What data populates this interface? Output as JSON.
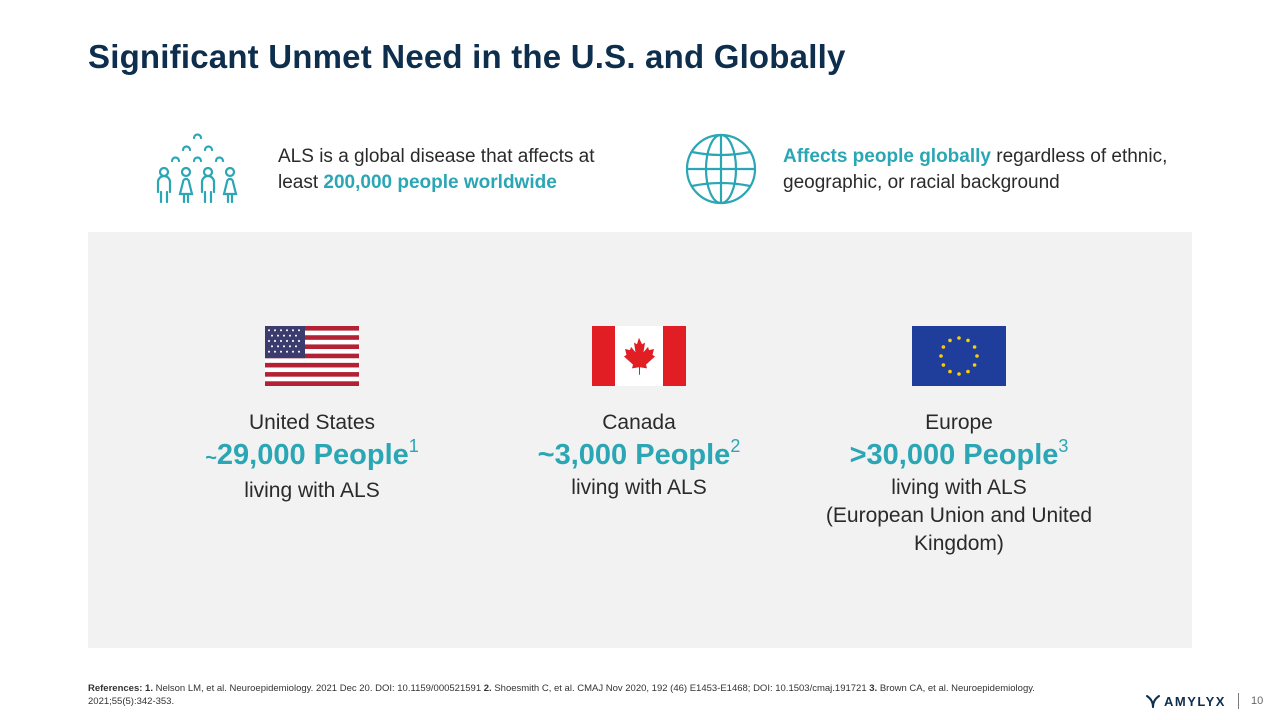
{
  "title": "Significant Unmet Need in the U.S. and Globally",
  "intro": {
    "left": {
      "icon": "people-group-icon",
      "text_before": "ALS is a global disease that affects at least ",
      "highlight": "200,000 people worldwide"
    },
    "right": {
      "icon": "globe-icon",
      "highlight": "Affects people globally",
      "text_after": " regardless of ethnic, geographic, or racial background"
    }
  },
  "colors": {
    "accent": "#2aa6b5",
    "title": "#0e2e4d",
    "panel": "#f2f2f2"
  },
  "regions": [
    {
      "name": "United States",
      "prefix": "~",
      "count": "29,000 People",
      "sup": "1",
      "desc": "living with ALS",
      "desc_extra": "",
      "flag_icon": "us-flag-icon"
    },
    {
      "name": "Canada",
      "prefix": "~",
      "count": "3,000 People",
      "sup": "2",
      "desc": "living with ALS",
      "desc_extra": "",
      "flag_icon": "canada-flag-icon"
    },
    {
      "name": "Europe",
      "prefix": ">",
      "count": "30,000 People",
      "sup": "3",
      "desc": "living with ALS",
      "desc_extra": "(European Union and United Kingdom)",
      "flag_icon": "eu-flag-icon"
    }
  ],
  "references": {
    "label": "References:",
    "items": [
      {
        "num": "1.",
        "text": " Nelson LM, et al. Neuroepidemiology. 2021 Dec 20. DOI: 10.1159/000521591 "
      },
      {
        "num": "2.",
        "text": " Shoesmith C, et al. CMAJ Nov 2020, 192 (46) E1453-E1468; DOI: 10.1503/cmaj.191721 "
      },
      {
        "num": "3.",
        "text": " Brown CA, et al. Neuroepidemiology. 2021;55(5):342-353."
      }
    ]
  },
  "footer": {
    "logo": "AMYLYX",
    "page_number": "10"
  }
}
